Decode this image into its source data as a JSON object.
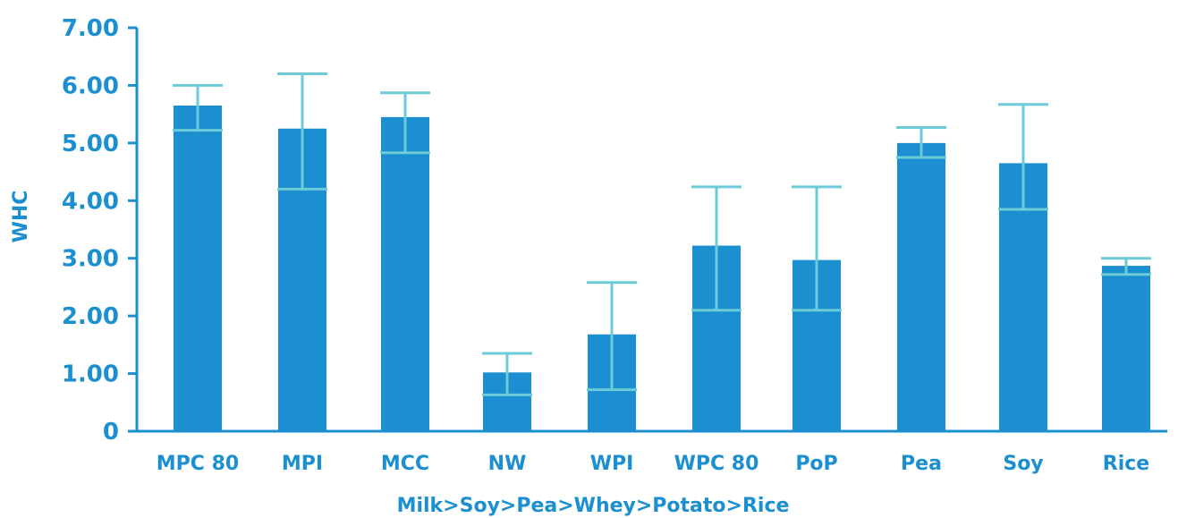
{
  "chart_data": {
    "type": "bar",
    "title": "",
    "xlabel": "Milk>Soy>Pea>Whey>Potato>Rice",
    "ylabel": "WHC",
    "ylim": [
      0,
      7
    ],
    "yticks": [
      {
        "value": 0,
        "label": "0"
      },
      {
        "value": 1,
        "label": "1.00"
      },
      {
        "value": 2,
        "label": "2.00"
      },
      {
        "value": 3,
        "label": "3.00"
      },
      {
        "value": 4,
        "label": "4.00"
      },
      {
        "value": 5,
        "label": "5.00"
      },
      {
        "value": 6,
        "label": "6.00"
      },
      {
        "value": 7,
        "label": "7.00"
      }
    ],
    "categories": [
      "MPC 80",
      "MPI",
      "MCC",
      "NW",
      "WPI",
      "WPC 80",
      "PoP",
      "Pea",
      "Soy",
      "Rice"
    ],
    "values": [
      5.65,
      5.25,
      5.45,
      1.02,
      1.68,
      3.22,
      2.97,
      5.0,
      4.65,
      2.87
    ],
    "error_low": [
      5.22,
      4.2,
      4.83,
      0.63,
      0.72,
      2.1,
      2.1,
      4.75,
      3.85,
      2.72
    ],
    "error_high": [
      6.0,
      6.2,
      5.87,
      1.35,
      2.58,
      4.24,
      4.24,
      5.27,
      5.67,
      3.0
    ],
    "grid": false,
    "legend": "none",
    "colors": {
      "bar": "#1b8fd0",
      "error": "#6ccbd8",
      "axis": "#1b8fd0",
      "text": "#1b8fd0"
    }
  }
}
